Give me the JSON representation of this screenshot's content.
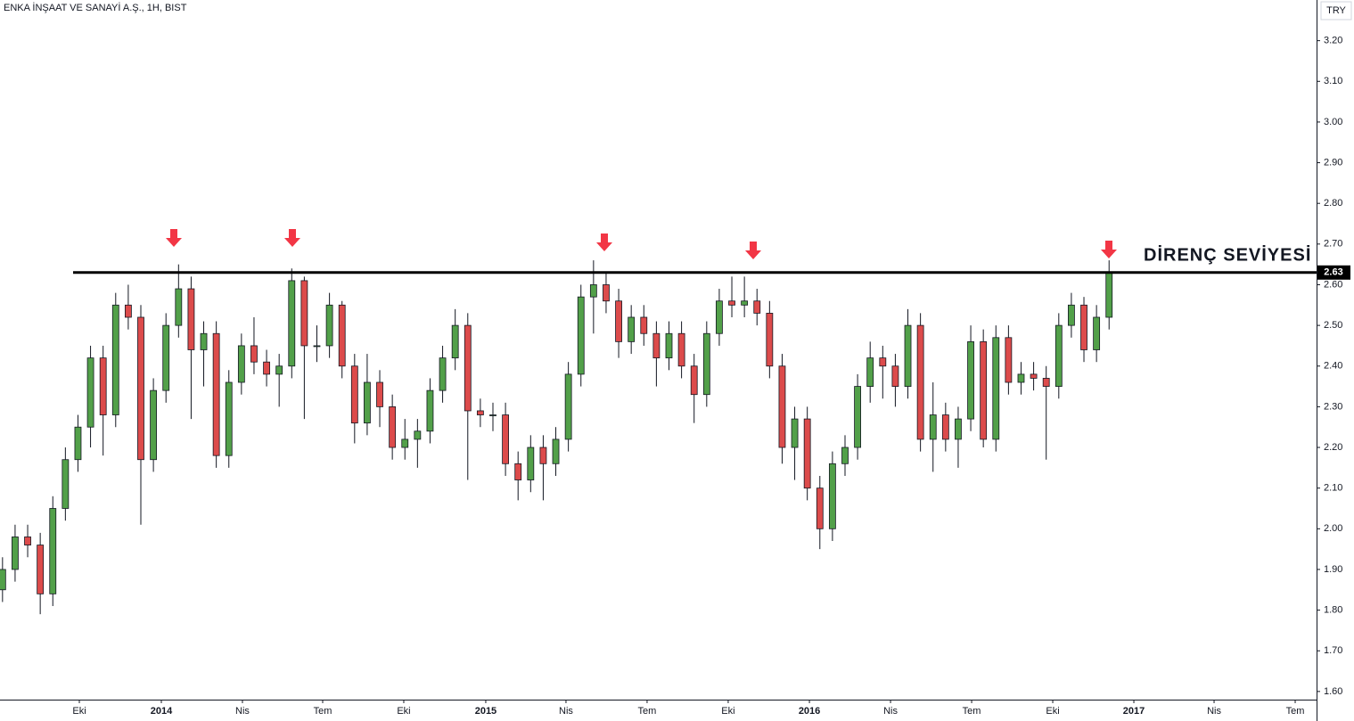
{
  "chart_data": {
    "type": "candlestick",
    "title": "ENKA İNŞAAT VE SANAYİ A.Ş., 1H, BIST",
    "currency": "TRY",
    "annotation": "DİRENÇ SEVİYESİ",
    "resistance": 2.63,
    "up_color": "#52a049",
    "down_color": "#dc4b4b",
    "ylim": [
      1.58,
      3.3
    ],
    "yticks": [
      {
        "value": 1.6,
        "label": "1.60"
      },
      {
        "value": 1.7,
        "label": "1.70"
      },
      {
        "value": 1.8,
        "label": "1.80"
      },
      {
        "value": 1.9,
        "label": "1.90"
      },
      {
        "value": 2.0,
        "label": "2.00"
      },
      {
        "value": 2.1,
        "label": "2.10"
      },
      {
        "value": 2.2,
        "label": "2.20"
      },
      {
        "value": 2.3,
        "label": "2.30"
      },
      {
        "value": 2.4,
        "label": "2.40"
      },
      {
        "value": 2.5,
        "label": "2.50"
      },
      {
        "value": 2.6,
        "label": "2.60"
      },
      {
        "value": 2.7,
        "label": "2.70"
      },
      {
        "value": 2.8,
        "label": "2.80"
      },
      {
        "value": 2.9,
        "label": "2.90"
      },
      {
        "value": 3.0,
        "label": "3.00"
      },
      {
        "value": 3.1,
        "label": "3.10"
      },
      {
        "value": 3.2,
        "label": "3.20"
      }
    ],
    "xlim": [
      -0.2,
      104.5
    ],
    "xticks": [
      {
        "value": 6.11,
        "label": "Eki"
      },
      {
        "value": 12.63,
        "label": "2014"
      },
      {
        "value": 19.08,
        "label": "Nis"
      },
      {
        "value": 25.46,
        "label": "Tem"
      },
      {
        "value": 31.91,
        "label": "Eki"
      },
      {
        "value": 38.43,
        "label": "2015"
      },
      {
        "value": 44.81,
        "label": "Nis"
      },
      {
        "value": 51.26,
        "label": "Tem"
      },
      {
        "value": 57.71,
        "label": "Eki"
      },
      {
        "value": 64.17,
        "label": "2016"
      },
      {
        "value": 70.62,
        "label": "Nis"
      },
      {
        "value": 77.07,
        "label": "Tem"
      },
      {
        "value": 83.52,
        "label": "Eki"
      },
      {
        "value": 89.97,
        "label": "2017"
      },
      {
        "value": 96.35,
        "label": "Nis"
      },
      {
        "value": 102.8,
        "label": "Tem"
      }
    ],
    "open": [
      1.85,
      1.9,
      1.98,
      1.96,
      1.84,
      2.05,
      2.17,
      2.25,
      2.42,
      2.28,
      2.55,
      2.52,
      2.17,
      2.34,
      2.5,
      2.59,
      2.44,
      2.48,
      2.18,
      2.36,
      2.45,
      2.41,
      2.38,
      2.4,
      2.61,
      2.45,
      2.45,
      2.55,
      2.4,
      2.26,
      2.36,
      2.3,
      2.2,
      2.22,
      2.24,
      2.34,
      2.42,
      2.5,
      2.29,
      2.28,
      2.28,
      2.16,
      2.12,
      2.2,
      2.16,
      2.22,
      2.38,
      2.57,
      2.6,
      2.56,
      2.46,
      2.52,
      2.48,
      2.42,
      2.48,
      2.4,
      2.33,
      2.48,
      2.56,
      2.55,
      2.56,
      2.53,
      2.4,
      2.2,
      2.27,
      2.1,
      2.0,
      2.16,
      2.2,
      2.35,
      2.42,
      2.4,
      2.35,
      2.5,
      2.22,
      2.28,
      2.22,
      2.27,
      2.46,
      2.22,
      2.47,
      2.36,
      2.38,
      2.37,
      2.35,
      2.5,
      2.55,
      2.44,
      2.52
    ],
    "high": [
      1.93,
      2.01,
      2.01,
      1.99,
      2.08,
      2.2,
      2.28,
      2.45,
      2.45,
      2.58,
      2.6,
      2.55,
      2.37,
      2.53,
      2.65,
      2.62,
      2.51,
      2.51,
      2.39,
      2.48,
      2.52,
      2.44,
      2.43,
      2.64,
      2.62,
      2.5,
      2.58,
      2.56,
      2.43,
      2.43,
      2.39,
      2.33,
      2.27,
      2.27,
      2.37,
      2.45,
      2.54,
      2.53,
      2.32,
      2.31,
      2.31,
      2.19,
      2.23,
      2.23,
      2.25,
      2.41,
      2.6,
      2.66,
      2.63,
      2.59,
      2.55,
      2.55,
      2.51,
      2.51,
      2.51,
      2.43,
      2.51,
      2.59,
      2.62,
      2.62,
      2.59,
      2.56,
      2.43,
      2.3,
      2.3,
      2.13,
      2.19,
      2.23,
      2.38,
      2.46,
      2.45,
      2.43,
      2.54,
      2.53,
      2.36,
      2.31,
      2.3,
      2.5,
      2.49,
      2.5,
      2.5,
      2.41,
      2.41,
      2.4,
      2.53,
      2.58,
      2.57,
      2.55,
      2.66
    ],
    "low": [
      1.82,
      1.87,
      1.93,
      1.79,
      1.81,
      2.02,
      2.14,
      2.2,
      2.18,
      2.25,
      2.49,
      2.01,
      2.14,
      2.31,
      2.47,
      2.27,
      2.35,
      2.15,
      2.15,
      2.33,
      2.38,
      2.35,
      2.3,
      2.37,
      2.27,
      2.41,
      2.42,
      2.37,
      2.21,
      2.23,
      2.25,
      2.17,
      2.17,
      2.15,
      2.21,
      2.31,
      2.39,
      2.12,
      2.25,
      2.24,
      2.13,
      2.07,
      2.09,
      2.07,
      2.13,
      2.19,
      2.35,
      2.48,
      2.53,
      2.42,
      2.43,
      2.45,
      2.35,
      2.39,
      2.37,
      2.26,
      2.3,
      2.45,
      2.52,
      2.52,
      2.5,
      2.37,
      2.16,
      2.12,
      2.07,
      1.95,
      1.97,
      2.13,
      2.17,
      2.31,
      2.32,
      2.3,
      2.32,
      2.19,
      2.14,
      2.19,
      2.15,
      2.24,
      2.2,
      2.19,
      2.33,
      2.33,
      2.34,
      2.17,
      2.32,
      2.47,
      2.41,
      2.41,
      2.49
    ],
    "close": [
      1.9,
      1.98,
      1.96,
      1.84,
      2.05,
      2.17,
      2.25,
      2.42,
      2.28,
      2.55,
      2.52,
      2.17,
      2.34,
      2.5,
      2.59,
      2.44,
      2.48,
      2.18,
      2.36,
      2.45,
      2.41,
      2.38,
      2.4,
      2.61,
      2.45,
      2.45,
      2.55,
      2.4,
      2.26,
      2.36,
      2.3,
      2.2,
      2.22,
      2.24,
      2.34,
      2.42,
      2.5,
      2.29,
      2.28,
      2.28,
      2.16,
      2.12,
      2.2,
      2.16,
      2.22,
      2.38,
      2.57,
      2.6,
      2.56,
      2.46,
      2.52,
      2.48,
      2.42,
      2.48,
      2.4,
      2.33,
      2.48,
      2.56,
      2.55,
      2.56,
      2.53,
      2.4,
      2.2,
      2.27,
      2.1,
      2.0,
      2.16,
      2.2,
      2.35,
      2.42,
      2.4,
      2.35,
      2.5,
      2.22,
      2.28,
      2.22,
      2.27,
      2.46,
      2.22,
      2.47,
      2.36,
      2.38,
      2.37,
      2.35,
      2.5,
      2.55,
      2.44,
      2.52,
      2.63
    ]
  }
}
